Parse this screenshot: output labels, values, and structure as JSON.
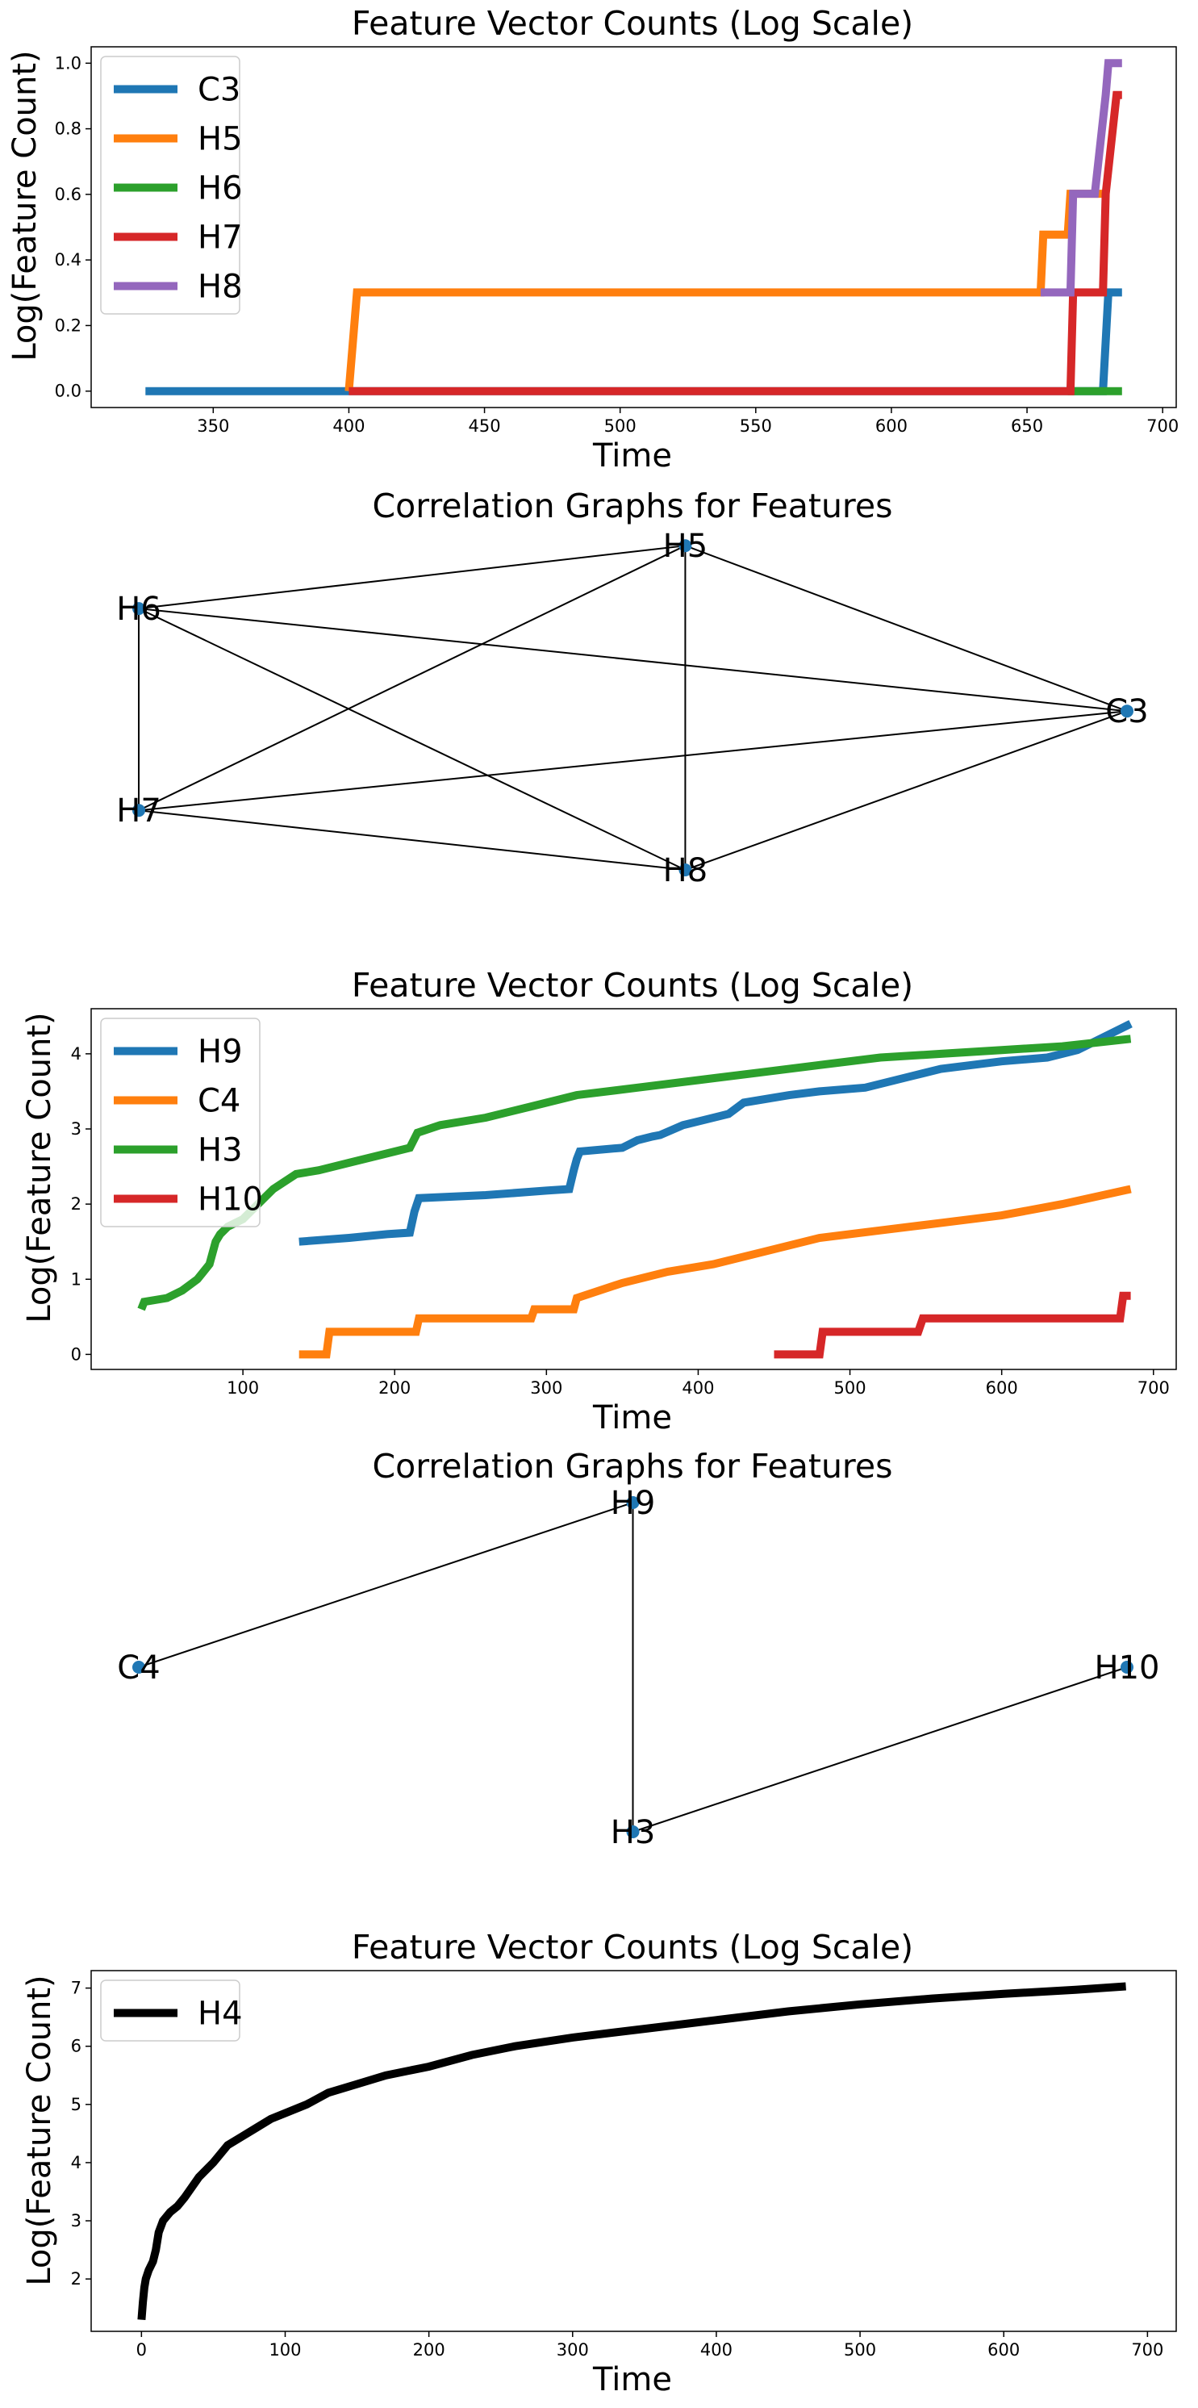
{
  "chart_data": [
    {
      "type": "line",
      "title": "Feature Vector Counts (Log Scale)",
      "xlabel": "Time",
      "ylabel": "Log(Feature Count)",
      "xlim": [
        305,
        705
      ],
      "ylim": [
        -0.05,
        1.05
      ],
      "xticks": [
        350,
        400,
        450,
        500,
        550,
        600,
        650,
        700
      ],
      "yticks": [
        0.0,
        0.2,
        0.4,
        0.6,
        0.8,
        1.0
      ],
      "ytick_format": 1,
      "legend": "top-left",
      "grid": false,
      "series": [
        {
          "name": "C3",
          "color": "#1f77b4",
          "x": [
            325,
            678,
            680,
            685
          ],
          "y": [
            0,
            0,
            0.301,
            0.301
          ]
        },
        {
          "name": "H5",
          "color": "#ff7f0e",
          "x": [
            400,
            403,
            655,
            656,
            665,
            666,
            680
          ],
          "y": [
            0,
            0.301,
            0.301,
            0.477,
            0.477,
            0.602,
            0.602
          ]
        },
        {
          "name": "H6",
          "color": "#2ca02c",
          "x": [
            665,
            685
          ],
          "y": [
            0,
            0
          ]
        },
        {
          "name": "H7",
          "color": "#d62728",
          "x": [
            400,
            666,
            667,
            678,
            679,
            683,
            685
          ],
          "y": [
            0,
            0,
            0.301,
            0.301,
            0.602,
            0.903,
            0.903
          ]
        },
        {
          "name": "H8",
          "color": "#9467bd",
          "x": [
            655,
            666,
            667,
            675,
            679,
            680,
            685
          ],
          "y": [
            0.301,
            0.301,
            0.602,
            0.602,
            0.903,
            1.0,
            1.0
          ]
        }
      ]
    },
    {
      "type": "network",
      "title": "Correlation Graphs for Features",
      "nodes": [
        {
          "name": "H5",
          "x": 0.553,
          "y": 0.98
        },
        {
          "name": "H6",
          "x": 0.0,
          "y": 0.79
        },
        {
          "name": "C3",
          "x": 1.0,
          "y": 0.48
        },
        {
          "name": "H7",
          "x": 0.0,
          "y": 0.18
        },
        {
          "name": "H8",
          "x": 0.553,
          "y": 0.0
        }
      ],
      "edges": [
        [
          "H6",
          "H5"
        ],
        [
          "H6",
          "C3"
        ],
        [
          "H6",
          "H7"
        ],
        [
          "H6",
          "H8"
        ],
        [
          "H5",
          "C3"
        ],
        [
          "H5",
          "H7"
        ],
        [
          "H5",
          "H8"
        ],
        [
          "H7",
          "C3"
        ],
        [
          "H7",
          "H8"
        ],
        [
          "H8",
          "C3"
        ]
      ],
      "node_color": "#1f77b4"
    },
    {
      "type": "line",
      "title": "Feature Vector Counts (Log Scale)",
      "xlabel": "Time",
      "ylabel": "Log(Feature Count)",
      "xlim": [
        0,
        715
      ],
      "ylim": [
        -0.2,
        4.6
      ],
      "xticks": [
        100,
        200,
        300,
        400,
        500,
        600,
        700
      ],
      "yticks": [
        0,
        1,
        2,
        3,
        4
      ],
      "ytick_format": 0,
      "legend": "top-left",
      "grid": false,
      "series": [
        {
          "name": "H9",
          "color": "#1f77b4",
          "x": [
            137,
            170,
            195,
            210,
            213,
            216,
            260,
            300,
            315,
            318,
            320,
            322,
            350,
            360,
            370,
            375,
            390,
            400,
            420,
            430,
            460,
            480,
            510,
            540,
            560,
            600,
            630,
            650,
            670,
            685
          ],
          "y": [
            1.5,
            1.55,
            1.6,
            1.62,
            1.9,
            2.08,
            2.12,
            2.18,
            2.2,
            2.45,
            2.6,
            2.7,
            2.75,
            2.85,
            2.9,
            2.92,
            3.05,
            3.1,
            3.2,
            3.35,
            3.45,
            3.5,
            3.55,
            3.7,
            3.8,
            3.9,
            3.95,
            4.05,
            4.25,
            4.4
          ]
        },
        {
          "name": "C4",
          "color": "#ff7f0e",
          "x": [
            137,
            155,
            157,
            214,
            216,
            290,
            292,
            318,
            320,
            350,
            380,
            410,
            440,
            480,
            520,
            560,
            600,
            640,
            685
          ],
          "y": [
            0,
            0,
            0.3,
            0.3,
            0.48,
            0.48,
            0.6,
            0.6,
            0.75,
            0.95,
            1.1,
            1.2,
            1.35,
            1.55,
            1.65,
            1.75,
            1.85,
            2.0,
            2.2
          ]
        },
        {
          "name": "H3",
          "color": "#2ca02c",
          "x": [
            33,
            35,
            50,
            60,
            70,
            78,
            82,
            85,
            90,
            100,
            110,
            120,
            135,
            150,
            170,
            190,
            210,
            215,
            230,
            260,
            290,
            320,
            360,
            400,
            440,
            480,
            520,
            560,
            600,
            640,
            685
          ],
          "y": [
            0.6,
            0.7,
            0.75,
            0.85,
            1.0,
            1.2,
            1.5,
            1.6,
            1.7,
            1.8,
            2.0,
            2.2,
            2.4,
            2.45,
            2.55,
            2.65,
            2.75,
            2.95,
            3.05,
            3.15,
            3.3,
            3.45,
            3.55,
            3.65,
            3.75,
            3.85,
            3.95,
            4.0,
            4.05,
            4.1,
            4.2
          ]
        },
        {
          "name": "H10",
          "color": "#d62728",
          "x": [
            450,
            480,
            482,
            545,
            548,
            678,
            680,
            685
          ],
          "y": [
            0,
            0,
            0.3,
            0.3,
            0.48,
            0.48,
            0.78,
            0.78
          ]
        }
      ]
    },
    {
      "type": "network",
      "title": "Correlation Graphs for Features",
      "nodes": [
        {
          "name": "H9",
          "x": 0.5,
          "y": 1.0
        },
        {
          "name": "C4",
          "x": 0.0,
          "y": 0.5
        },
        {
          "name": "H10",
          "x": 1.0,
          "y": 0.5
        },
        {
          "name": "H3",
          "x": 0.5,
          "y": 0.0
        }
      ],
      "edges": [
        [
          "C4",
          "H9"
        ],
        [
          "H9",
          "H3"
        ],
        [
          "H3",
          "H10"
        ]
      ],
      "node_color": "#1f77b4"
    },
    {
      "type": "line",
      "title": "Feature Vector Counts (Log Scale)",
      "xlabel": "Time",
      "ylabel": "Log(Feature Count)",
      "xlim": [
        -35,
        720
      ],
      "ylim": [
        1.1,
        7.3
      ],
      "xticks": [
        0,
        100,
        200,
        300,
        400,
        500,
        600,
        700
      ],
      "yticks": [
        2,
        3,
        4,
        5,
        6,
        7
      ],
      "ytick_format": 0,
      "legend": "top-left",
      "grid": false,
      "series": [
        {
          "name": "H4",
          "color": "#000000",
          "x": [
            0,
            1,
            2,
            3,
            5,
            8,
            10,
            12,
            15,
            20,
            25,
            30,
            40,
            50,
            60,
            70,
            80,
            90,
            100,
            115,
            130,
            150,
            170,
            200,
            230,
            260,
            300,
            350,
            400,
            450,
            500,
            550,
            600,
            650,
            685
          ],
          "y": [
            1.3,
            1.6,
            1.85,
            2.0,
            2.15,
            2.3,
            2.5,
            2.8,
            3.0,
            3.15,
            3.25,
            3.4,
            3.75,
            4.0,
            4.3,
            4.45,
            4.6,
            4.75,
            4.85,
            5.0,
            5.2,
            5.35,
            5.5,
            5.65,
            5.85,
            6.0,
            6.15,
            6.3,
            6.45,
            6.6,
            6.72,
            6.82,
            6.9,
            6.97,
            7.03
          ]
        }
      ]
    }
  ]
}
